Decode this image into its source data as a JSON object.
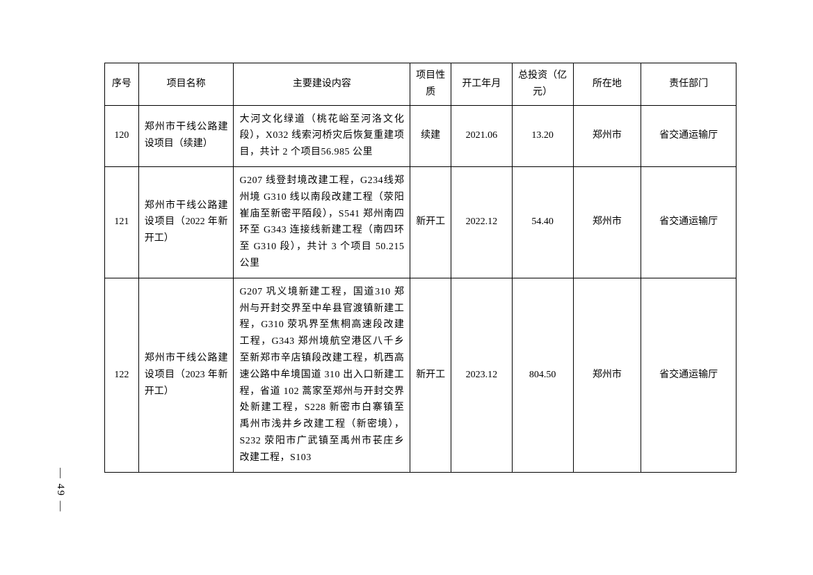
{
  "page_number": "— 49 —",
  "table": {
    "columns": [
      "序号",
      "项目名称",
      "主要建设内容",
      "项目性质",
      "开工年月",
      "总投资（亿元）",
      "所在地",
      "责任部门"
    ],
    "column_widths_pct": [
      5,
      14,
      26,
      6,
      9,
      9,
      10,
      14
    ],
    "border_color": "#000000",
    "background_color": "#ffffff",
    "font_family": "SimSun",
    "font_size_pt": 10.5,
    "rows": [
      {
        "seq": "120",
        "name": "郑州市干线公路建设项目（续建）",
        "content": "大河文化绿道（桃花峪至河洛文化段），X032 线索河桥灾后恢复重建项目，共计 2 个项目56.985 公里",
        "nature": "续建",
        "date": "2021.06",
        "invest": "13.20",
        "loc": "郑州市",
        "dept": "省交通运输厅"
      },
      {
        "seq": "121",
        "name": "郑州市干线公路建设项目（2022 年新开工）",
        "content": "G207 线登封境改建工程，G234线郑州境 G310 线以南段改建工程（荥阳崔庙至新密平陌段），S541 郑州南四环至 G343 连接线新建工程（南四环至 G310 段），共计 3 个项目 50.215 公里",
        "nature": "新开工",
        "date": "2022.12",
        "invest": "54.40",
        "loc": "郑州市",
        "dept": "省交通运输厅"
      },
      {
        "seq": "122",
        "name": "郑州市干线公路建设项目（2023 年新开工）",
        "content": "G207 巩义境新建工程，国道310 郑州与开封交界至中牟县官渡镇新建工程，G310 荥巩界至焦桐高速段改建工程，G343 郑州境航空港区八千乡至新郑市辛店镇段改建工程，机西高速公路中牟境国道 310 出入口新建工程，省道 102 蒿家至郑州与开封交界处新建工程，S228 新密市白寨镇至禹州市浅井乡改建工程（新密境），S232 荥阳市广武镇至禹州市苌庄乡改建工程，S103",
        "nature": "新开工",
        "date": "2023.12",
        "invest": "804.50",
        "loc": "郑州市",
        "dept": "省交通运输厅"
      }
    ]
  }
}
